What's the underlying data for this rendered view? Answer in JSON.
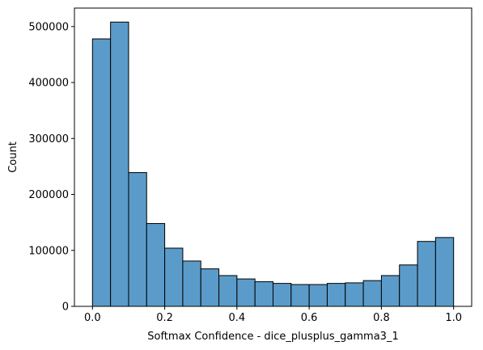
{
  "chart_data": {
    "type": "bar",
    "title": "",
    "xlabel": "Softmax Confidence - dice_plusplus_gamma3_1",
    "ylabel": "Count",
    "bin_edges": [
      0.0,
      0.05,
      0.1,
      0.15,
      0.2,
      0.25,
      0.3,
      0.35,
      0.4,
      0.45,
      0.5,
      0.55,
      0.6,
      0.65,
      0.7,
      0.75,
      0.8,
      0.85,
      0.9,
      0.95,
      1.0
    ],
    "values": [
      478000,
      508000,
      239000,
      148000,
      104000,
      81000,
      67000,
      55000,
      49000,
      44000,
      41000,
      39000,
      39000,
      41000,
      42000,
      46000,
      55000,
      74000,
      116000,
      123000
    ],
    "xlim": [
      -0.05,
      1.05
    ],
    "ylim": [
      0,
      533000
    ],
    "xticks": [
      0.0,
      0.2,
      0.4,
      0.6,
      0.8,
      1.0
    ],
    "xtick_labels": [
      "0.0",
      "0.2",
      "0.4",
      "0.6",
      "0.8",
      "1.0"
    ],
    "yticks": [
      0,
      100000,
      200000,
      300000,
      400000,
      500000
    ],
    "ytick_labels": [
      "0",
      "100000",
      "200000",
      "300000",
      "400000",
      "500000"
    ],
    "bar_color": "#5b9bc9",
    "edge_color": "#000000",
    "grid": false,
    "legend": "none"
  }
}
